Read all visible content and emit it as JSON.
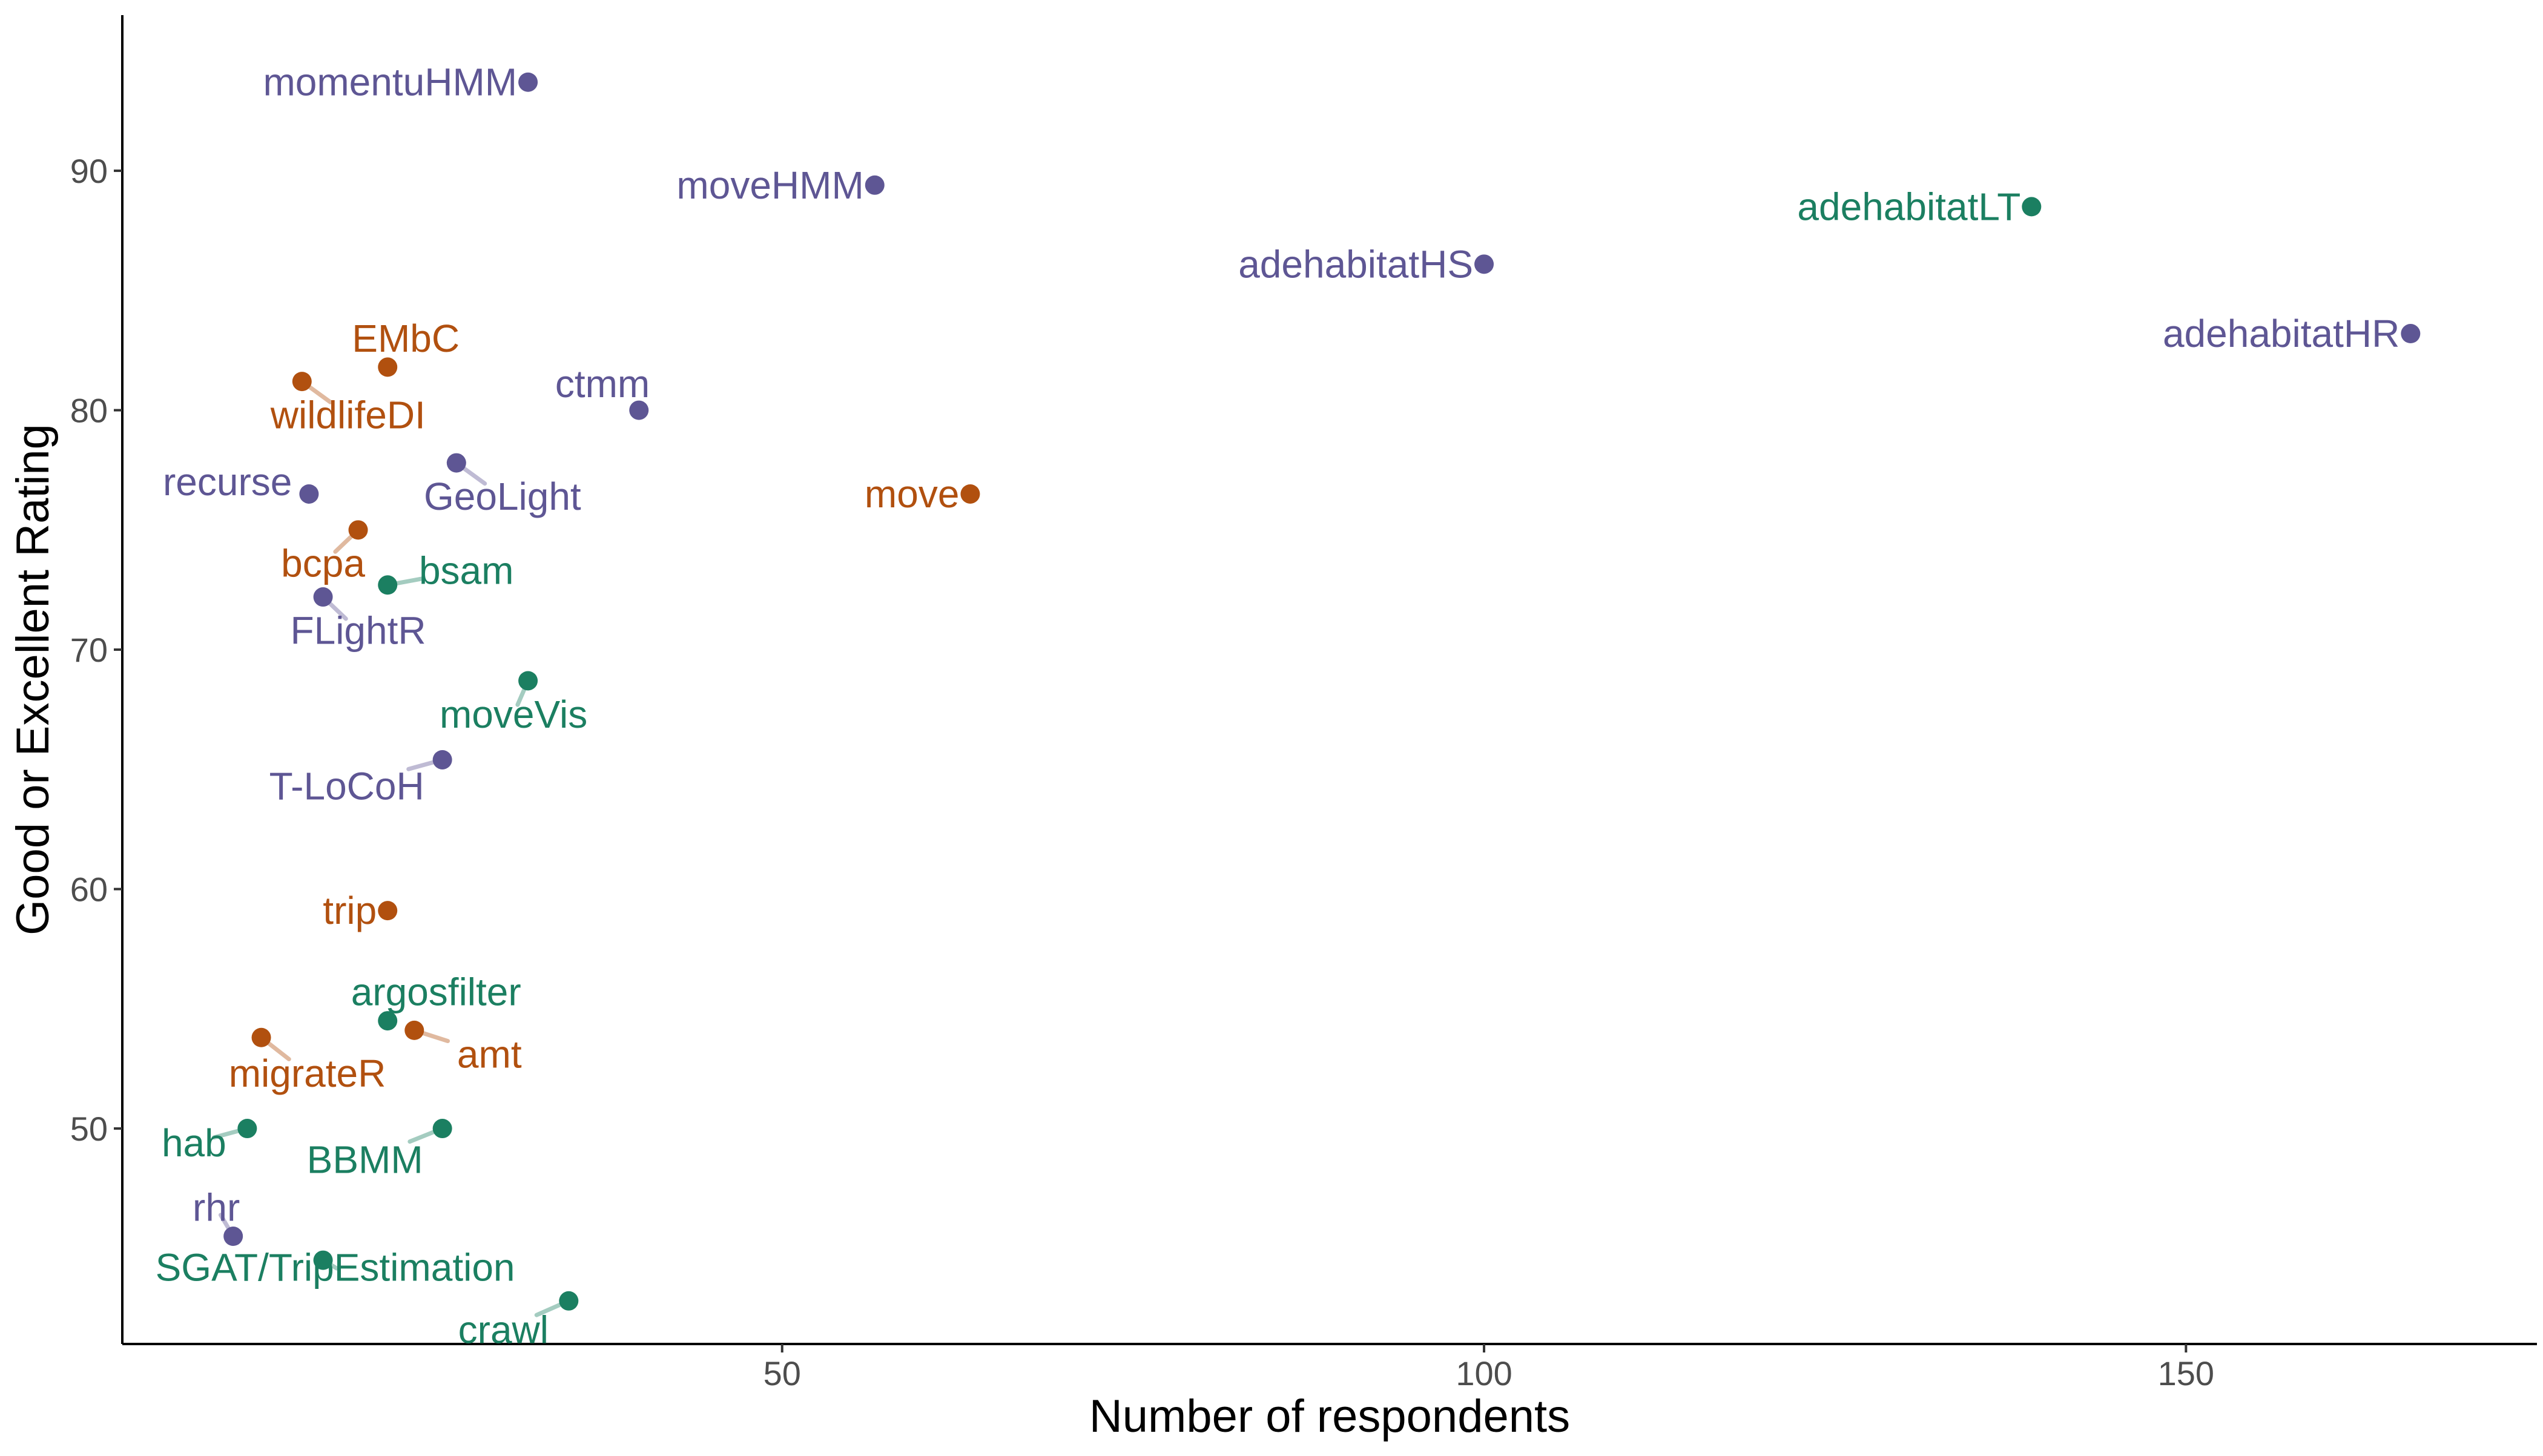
{
  "chart_data": {
    "type": "scatter",
    "title": "",
    "xlabel": "Number of respondents",
    "ylabel": "Good or Excellent Rating",
    "xlim": [
      3,
      175
    ],
    "ylim": [
      41,
      96.5
    ],
    "xticks": [
      50,
      100,
      150
    ],
    "yticks": [
      50,
      60,
      70,
      80,
      90
    ],
    "grid": false,
    "legend": "none",
    "colors": {
      "purple": "#5e5694",
      "orange": "#b1500f",
      "green": "#1b7f61"
    },
    "points": [
      {
        "label": "momentuHMM",
        "x": 31.9,
        "y": 93.7,
        "color": "purple",
        "dx": -18,
        "dy": 0,
        "anchor": "end",
        "leader": false
      },
      {
        "label": "moveHMM",
        "x": 56.6,
        "y": 89.4,
        "color": "purple",
        "dx": -18,
        "dy": 0,
        "anchor": "end",
        "leader": false
      },
      {
        "label": "adehabitatLT",
        "x": 139.0,
        "y": 88.5,
        "color": "green",
        "dx": -18,
        "dy": 0,
        "anchor": "end",
        "leader": false
      },
      {
        "label": "adehabitatHS",
        "x": 100.0,
        "y": 86.1,
        "color": "purple",
        "dx": -18,
        "dy": 0,
        "anchor": "end",
        "leader": false
      },
      {
        "label": "adehabitatHR",
        "x": 166.0,
        "y": 83.2,
        "color": "purple",
        "dx": -18,
        "dy": 0,
        "anchor": "end",
        "leader": false
      },
      {
        "label": "EMbC",
        "x": 21.9,
        "y": 81.8,
        "color": "orange",
        "dx": 30,
        "dy": 1.2,
        "anchor": "middle",
        "leader": false
      },
      {
        "label": "wildlifeDI",
        "x": 15.8,
        "y": 81.2,
        "color": "orange",
        "dx": 76,
        "dy": -1.4,
        "anchor": "middle",
        "leader": true
      },
      {
        "label": "ctmm",
        "x": 39.8,
        "y": 80.0,
        "color": "purple",
        "dx": 18,
        "dy": 1.1,
        "anchor": "end",
        "leader": false
      },
      {
        "label": "GeoLight",
        "x": 26.8,
        "y": 77.8,
        "color": "purple",
        "dx": 76,
        "dy": -1.4,
        "anchor": "middle",
        "leader": true
      },
      {
        "label": "move",
        "x": 63.4,
        "y": 76.5,
        "color": "orange",
        "dx": -18,
        "dy": 0,
        "anchor": "end",
        "leader": false
      },
      {
        "label": "recurse",
        "x": 16.3,
        "y": 76.5,
        "color": "purple",
        "dx": -28,
        "dy": 0.5,
        "anchor": "end",
        "leader": false
      },
      {
        "label": "bcpa",
        "x": 19.8,
        "y": 75.0,
        "color": "orange",
        "dx": -58,
        "dy": -1.4,
        "anchor": "middle",
        "leader": true
      },
      {
        "label": "bsam",
        "x": 21.9,
        "y": 72.7,
        "color": "green",
        "dx": 130,
        "dy": 0.6,
        "anchor": "middle",
        "leader": true
      },
      {
        "label": "FLightR",
        "x": 17.3,
        "y": 72.2,
        "color": "purple",
        "dx": 58,
        "dy": -1.4,
        "anchor": "middle",
        "leader": true
      },
      {
        "label": "moveVis",
        "x": 31.9,
        "y": 68.7,
        "color": "green",
        "dx": -24,
        "dy": -1.4,
        "anchor": "middle",
        "leader": true
      },
      {
        "label": "T-LoCoH",
        "x": 25.8,
        "y": 65.4,
        "color": "purple",
        "dx": -158,
        "dy": -1.1,
        "anchor": "middle",
        "leader": true
      },
      {
        "label": "trip",
        "x": 21.9,
        "y": 59.1,
        "color": "orange",
        "dx": -18,
        "dy": 0,
        "anchor": "end",
        "leader": false
      },
      {
        "label": "argosfilter",
        "x": 21.9,
        "y": 54.5,
        "color": "green",
        "dx": 80,
        "dy": 1.2,
        "anchor": "middle",
        "leader": false
      },
      {
        "label": "amt",
        "x": 23.8,
        "y": 54.1,
        "color": "orange",
        "dx": 124,
        "dy": -1.0,
        "anchor": "middle",
        "leader": true
      },
      {
        "label": "migrateR",
        "x": 12.9,
        "y": 53.8,
        "color": "orange",
        "dx": 76,
        "dy": -1.5,
        "anchor": "middle",
        "leader": true
      },
      {
        "label": "hab",
        "x": 11.9,
        "y": 50.0,
        "color": "green",
        "dx": -88,
        "dy": -0.6,
        "anchor": "middle",
        "leader": true
      },
      {
        "label": "BBMM",
        "x": 25.8,
        "y": 50.0,
        "color": "green",
        "dx": -128,
        "dy": -1.3,
        "anchor": "middle",
        "leader": true
      },
      {
        "label": "rhr",
        "x": 10.9,
        "y": 45.5,
        "color": "purple",
        "dx": -28,
        "dy": 1.2,
        "anchor": "middle",
        "leader": true
      },
      {
        "label": "SGAT/TripEstimation",
        "x": 17.3,
        "y": 44.5,
        "color": "green",
        "dx": 20,
        "dy": -0.3,
        "anchor": "middle",
        "leader": true
      },
      {
        "label": "crawl",
        "x": 34.8,
        "y": 42.8,
        "color": "green",
        "dx": -108,
        "dy": -1.2,
        "anchor": "middle",
        "leader": true
      }
    ]
  }
}
